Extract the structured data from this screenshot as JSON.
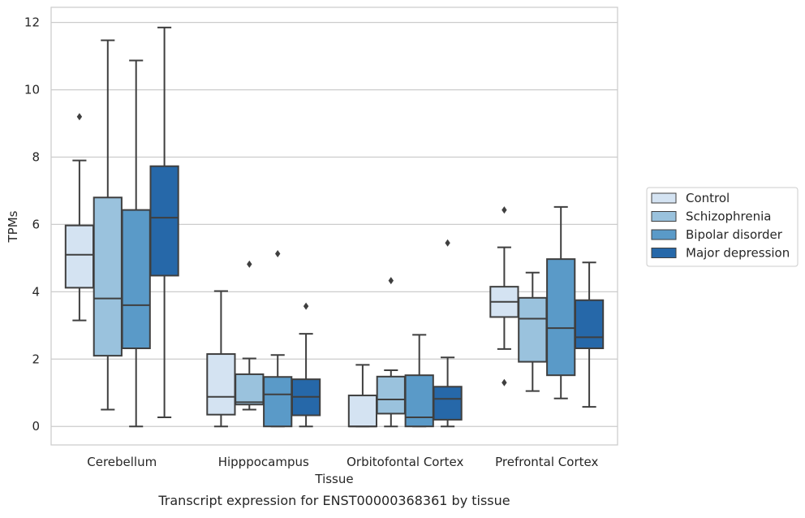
{
  "chart_data": {
    "type": "boxplot",
    "title": "",
    "caption": "Transcript expression for ENST00000368361 by tissue",
    "xlabel": "Tissue",
    "ylabel": "TPMs",
    "ylim": [
      -0.55,
      12.45
    ],
    "yticks": [
      0,
      2,
      4,
      6,
      8,
      10,
      12
    ],
    "grid": "horizontal",
    "legend_position": "right",
    "categories": [
      "Cerebellum",
      "Hipppocampus",
      "Orbitofontal Cortex",
      "Prefrontal Cortex"
    ],
    "series": [
      {
        "name": "Control",
        "color": "#d4e3f2",
        "boxes": [
          {
            "whislo": 3.15,
            "q1": 4.12,
            "med": 5.1,
            "q3": 5.97,
            "whishi": 7.9,
            "fliers": [
              9.2
            ]
          },
          {
            "whislo": 0.0,
            "q1": 0.35,
            "med": 0.88,
            "q3": 2.15,
            "whishi": 4.02,
            "fliers": []
          },
          {
            "whislo": 0.0,
            "q1": 0.0,
            "med": 0.0,
            "q3": 0.92,
            "whishi": 1.83,
            "fliers": []
          },
          {
            "whislo": 2.3,
            "q1": 3.25,
            "med": 3.7,
            "q3": 4.15,
            "whishi": 5.32,
            "fliers": [
              6.43,
              1.3
            ]
          }
        ]
      },
      {
        "name": "Schizophrenia",
        "color": "#9ac2dd",
        "boxes": [
          {
            "whislo": 0.5,
            "q1": 2.1,
            "med": 3.8,
            "q3": 6.8,
            "whishi": 11.47,
            "fliers": []
          },
          {
            "whislo": 0.5,
            "q1": 0.65,
            "med": 0.72,
            "q3": 1.55,
            "whishi": 2.02,
            "fliers": [
              4.82
            ]
          },
          {
            "whislo": 0.0,
            "q1": 0.38,
            "med": 0.8,
            "q3": 1.48,
            "whishi": 1.67,
            "fliers": [
              4.33
            ]
          },
          {
            "whislo": 1.05,
            "q1": 1.92,
            "med": 3.2,
            "q3": 3.82,
            "whishi": 4.57,
            "fliers": []
          }
        ]
      },
      {
        "name": "Bipolar disorder",
        "color": "#5a9ac8",
        "boxes": [
          {
            "whislo": 0.0,
            "q1": 2.32,
            "med": 3.6,
            "q3": 6.43,
            "whishi": 10.87,
            "fliers": []
          },
          {
            "whislo": 0.0,
            "q1": 0.0,
            "med": 0.95,
            "q3": 1.47,
            "whishi": 2.12,
            "fliers": [
              5.13
            ]
          },
          {
            "whislo": 0.0,
            "q1": 0.0,
            "med": 0.27,
            "q3": 1.52,
            "whishi": 2.72,
            "fliers": []
          },
          {
            "whislo": 0.83,
            "q1": 1.52,
            "med": 2.92,
            "q3": 4.97,
            "whishi": 6.52,
            "fliers": []
          }
        ]
      },
      {
        "name": "Major depression",
        "color": "#2668a9",
        "boxes": [
          {
            "whislo": 0.27,
            "q1": 4.48,
            "med": 6.2,
            "q3": 7.73,
            "whishi": 11.85,
            "fliers": []
          },
          {
            "whislo": 0.0,
            "q1": 0.33,
            "med": 0.88,
            "q3": 1.4,
            "whishi": 2.75,
            "fliers": [
              3.57
            ]
          },
          {
            "whislo": 0.0,
            "q1": 0.2,
            "med": 0.82,
            "q3": 1.18,
            "whishi": 2.05,
            "fliers": [
              5.45
            ]
          },
          {
            "whislo": 0.58,
            "q1": 2.32,
            "med": 2.65,
            "q3": 3.75,
            "whishi": 4.87,
            "fliers": []
          }
        ]
      }
    ]
  }
}
